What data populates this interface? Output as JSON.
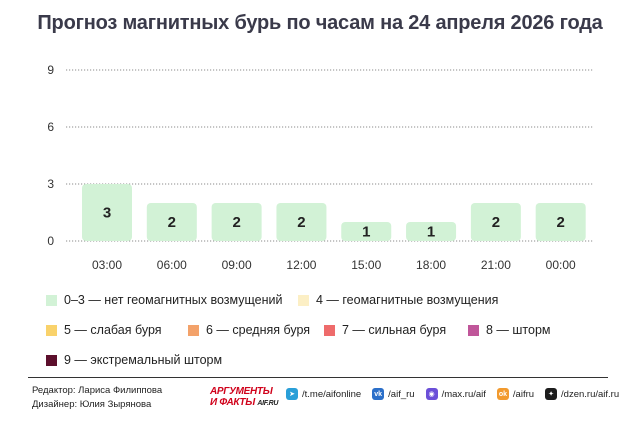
{
  "title": "Прогноз магнитных бурь по часам на 24 апреля 2026 года",
  "chart_data": {
    "type": "bar",
    "categories": [
      "03:00",
      "06:00",
      "09:00",
      "12:00",
      "15:00",
      "18:00",
      "21:00",
      "00:00"
    ],
    "values": [
      3,
      2,
      2,
      2,
      1,
      1,
      2,
      2
    ],
    "yticks": [
      0,
      3,
      6,
      9
    ],
    "ylim": [
      0,
      9
    ],
    "grid": true,
    "bar_color": "#d2f2d6",
    "title": "Прогноз магнитных бурь по часам на 24 апреля 2026 года",
    "xlabel": "",
    "ylabel": ""
  },
  "legend": {
    "rows": [
      [
        {
          "label": "0–3 — нет геомагнитных возмущений",
          "color": "#d2f2d6"
        },
        {
          "label": "4 — геомагнитные возмущения",
          "color": "#fcefc5"
        }
      ],
      [
        {
          "label": "5 — слабая буря",
          "color": "#f9d26b"
        },
        {
          "label": "6 — средняя буря",
          "color": "#f3a26a"
        },
        {
          "label": "7 — сильная буря",
          "color": "#ee6b6b"
        },
        {
          "label": "8 — шторм",
          "color": "#c0569a"
        }
      ],
      [
        {
          "label": "9 — экстремальный шторм",
          "color": "#5c0f2c"
        }
      ]
    ]
  },
  "footer": {
    "editor": "Редактор: Лариса Филиппова",
    "designer": "Дизайнер: Юлия Зырянова",
    "logo_line1": "АРГУМЕНТЫ",
    "logo_line2": "И ФАКТЫ",
    "logo_domain": "AIF.RU",
    "socials": [
      {
        "icon": "telegram-icon",
        "label": "/t.me/aifonline",
        "color": "#2a9fd8",
        "glyph": "➤"
      },
      {
        "icon": "vk-icon",
        "label": "/aif_ru",
        "color": "#2b6fc9",
        "glyph": "vk"
      },
      {
        "icon": "max-icon",
        "label": "/max.ru/aif",
        "color": "#6b4fd8",
        "glyph": "◉"
      },
      {
        "icon": "odnoklassniki-icon",
        "label": "/aifru",
        "color": "#f29a2e",
        "glyph": "ok"
      },
      {
        "icon": "dzen-icon",
        "label": "/dzen.ru/aif.ru",
        "color": "#1d1d1d",
        "glyph": "✦"
      }
    ]
  }
}
